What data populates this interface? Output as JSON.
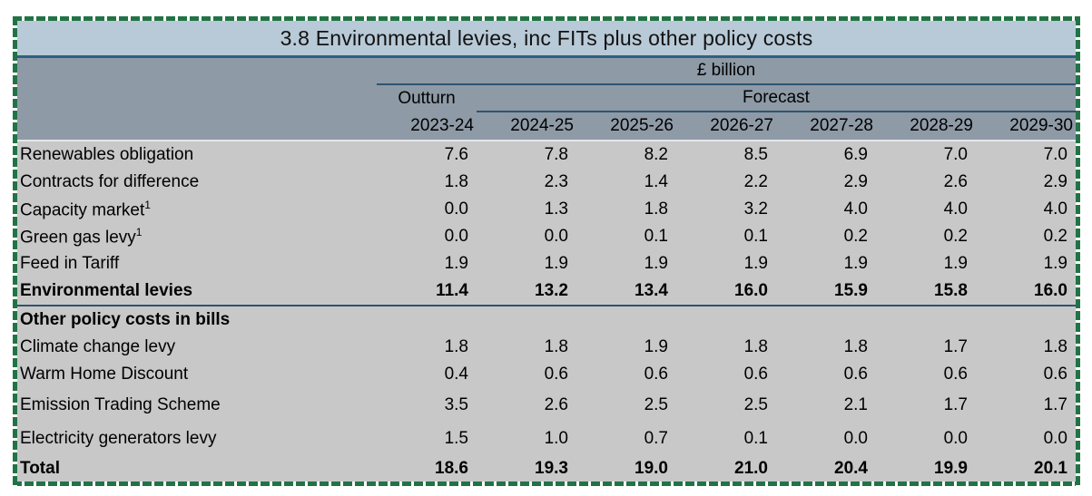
{
  "table": {
    "title": "3.8 Environmental levies, inc FITs plus other policy costs",
    "unit_label": "£ billion",
    "outturn_label": "Outturn",
    "forecast_label": "Forecast",
    "columns": [
      "2023-24",
      "2024-25",
      "2025-26",
      "2026-27",
      "2027-28",
      "2028-29",
      "2029-30"
    ],
    "rows": [
      {
        "label": "Renewables obligation",
        "sup": "",
        "bold": false,
        "tall": false,
        "divider_after": false,
        "values": [
          "7.6",
          "7.8",
          "8.2",
          "8.5",
          "6.9",
          "7.0",
          "7.0"
        ]
      },
      {
        "label": "Contracts for difference",
        "sup": "",
        "bold": false,
        "tall": false,
        "divider_after": false,
        "values": [
          "1.8",
          "2.3",
          "1.4",
          "2.2",
          "2.9",
          "2.6",
          "2.9"
        ]
      },
      {
        "label": "Capacity market",
        "sup": "1",
        "bold": false,
        "tall": false,
        "divider_after": false,
        "values": [
          "0.0",
          "1.3",
          "1.8",
          "3.2",
          "4.0",
          "4.0",
          "4.0"
        ]
      },
      {
        "label": "Green gas levy",
        "sup": "1",
        "bold": false,
        "tall": false,
        "divider_after": false,
        "values": [
          "0.0",
          "0.0",
          "0.1",
          "0.1",
          "0.2",
          "0.2",
          "0.2"
        ]
      },
      {
        "label": "Feed in Tariff",
        "sup": "",
        "bold": false,
        "tall": false,
        "divider_after": false,
        "values": [
          "1.9",
          "1.9",
          "1.9",
          "1.9",
          "1.9",
          "1.9",
          "1.9"
        ]
      },
      {
        "label": "Environmental levies",
        "sup": "",
        "bold": true,
        "tall": false,
        "divider_after": true,
        "values": [
          "11.4",
          "13.2",
          "13.4",
          "16.0",
          "15.9",
          "15.8",
          "16.0"
        ]
      },
      {
        "label": "Other policy costs in bills",
        "sup": "",
        "bold": true,
        "tall": false,
        "divider_after": false,
        "values": []
      },
      {
        "label": "Climate change levy",
        "sup": "",
        "bold": false,
        "tall": false,
        "divider_after": false,
        "values": [
          "1.8",
          "1.8",
          "1.9",
          "1.8",
          "1.8",
          "1.7",
          "1.8"
        ]
      },
      {
        "label": "Warm Home Discount",
        "sup": "",
        "bold": false,
        "tall": false,
        "divider_after": false,
        "values": [
          "0.4",
          "0.6",
          "0.6",
          "0.6",
          "0.6",
          "0.6",
          "0.6"
        ]
      },
      {
        "label": "Emission Trading Scheme",
        "sup": "",
        "bold": false,
        "tall": true,
        "divider_after": false,
        "values": [
          "3.5",
          "2.6",
          "2.5",
          "2.5",
          "2.1",
          "1.7",
          "1.7"
        ]
      },
      {
        "label": "Electricity generators levy",
        "sup": "",
        "bold": false,
        "tall": true,
        "divider_after": false,
        "values": [
          "1.5",
          "1.0",
          "0.7",
          "0.1",
          "0.0",
          "0.0",
          "0.0"
        ]
      },
      {
        "label": "Total",
        "sup": "",
        "bold": true,
        "tall": false,
        "divider_after": false,
        "values": [
          "18.6",
          "19.3",
          "19.0",
          "21.0",
          "20.4",
          "19.9",
          "20.1"
        ]
      }
    ]
  },
  "colors": {
    "marquee_green": "#217346",
    "title_bg": "#b8c9d7",
    "title_rule": "#30607f",
    "header_bg": "#8e9aa6",
    "header_rule": "#2e546e",
    "header_bottom_rule": "#e3e7ea",
    "body_bg": "#c8c8c8",
    "section_divider": "#2e546e",
    "text": "#000000"
  }
}
